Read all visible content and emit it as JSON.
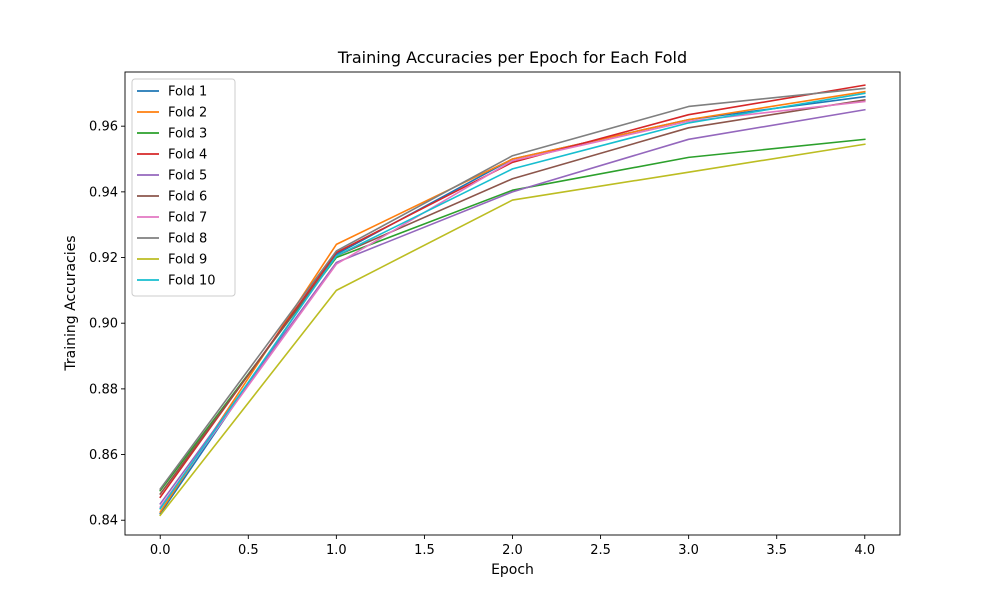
{
  "chart_data": {
    "type": "line",
    "title": "Training Accuracies per Epoch for Each Fold",
    "xlabel": "Epoch",
    "ylabel": "Training Accuracies",
    "x": [
      0,
      1,
      2,
      3,
      4
    ],
    "xlim": [
      -0.2,
      4.2
    ],
    "ylim": [
      0.8355,
      0.9765
    ],
    "xticks": [
      0.0,
      0.5,
      1.0,
      1.5,
      2.0,
      2.5,
      3.0,
      3.5,
      4.0
    ],
    "xtick_labels": [
      "0.0",
      "0.5",
      "1.0",
      "1.5",
      "2.0",
      "2.5",
      "3.0",
      "3.5",
      "4.0"
    ],
    "yticks": [
      0.84,
      0.86,
      0.88,
      0.9,
      0.92,
      0.94,
      0.96
    ],
    "ytick_labels": [
      "0.84",
      "0.86",
      "0.88",
      "0.90",
      "0.92",
      "0.94",
      "0.96"
    ],
    "grid": false,
    "legend_position": "top-left",
    "series": [
      {
        "name": "Fold 1",
        "color": "#1f77b4",
        "values": [
          0.842,
          0.921,
          0.95,
          0.962,
          0.969
        ]
      },
      {
        "name": "Fold 2",
        "color": "#ff7f0e",
        "values": [
          0.8425,
          0.924,
          0.95,
          0.962,
          0.9705
        ]
      },
      {
        "name": "Fold 3",
        "color": "#2ca02c",
        "values": [
          0.849,
          0.92,
          0.9405,
          0.9505,
          0.956
        ]
      },
      {
        "name": "Fold 4",
        "color": "#d62728",
        "values": [
          0.847,
          0.9215,
          0.949,
          0.9635,
          0.9725
        ]
      },
      {
        "name": "Fold 5",
        "color": "#9467bd",
        "values": [
          0.845,
          0.9185,
          0.94,
          0.956,
          0.965
        ]
      },
      {
        "name": "Fold 6",
        "color": "#8c564b",
        "values": [
          0.848,
          0.9205,
          0.944,
          0.9595,
          0.968
        ]
      },
      {
        "name": "Fold 7",
        "color": "#e377c2",
        "values": [
          0.844,
          0.918,
          0.9495,
          0.9615,
          0.9675
        ]
      },
      {
        "name": "Fold 8",
        "color": "#7f7f7f",
        "values": [
          0.8495,
          0.922,
          0.951,
          0.966,
          0.9715
        ]
      },
      {
        "name": "Fold 9",
        "color": "#bcbd22",
        "values": [
          0.8415,
          0.91,
          0.9375,
          0.946,
          0.9545
        ]
      },
      {
        "name": "Fold 10",
        "color": "#17becf",
        "values": [
          0.8435,
          0.9205,
          0.947,
          0.961,
          0.97
        ]
      }
    ]
  }
}
